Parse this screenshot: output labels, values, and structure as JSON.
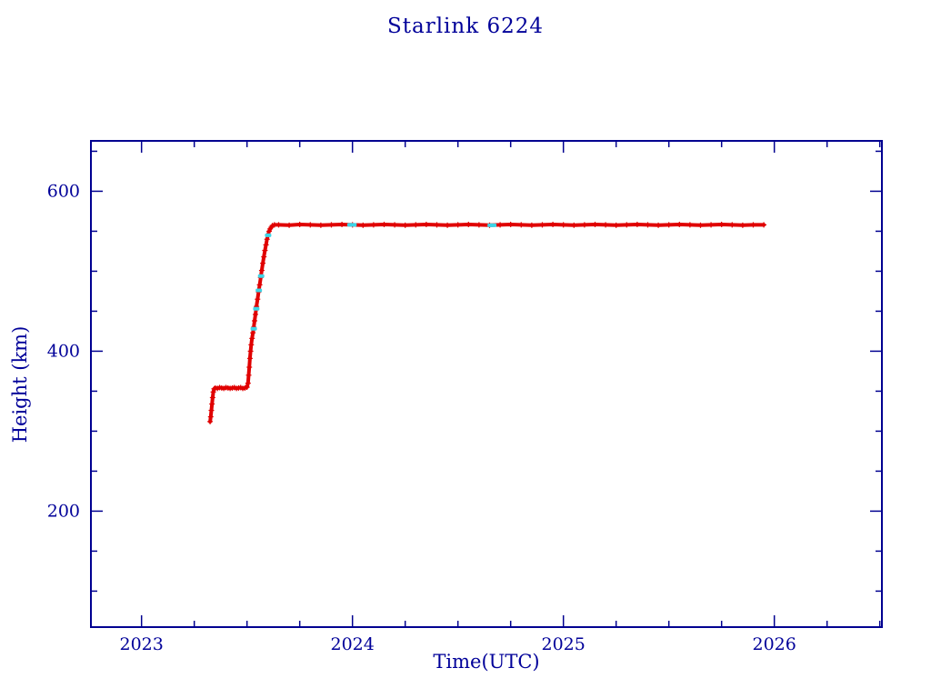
{
  "page": {
    "background": "#ffffff"
  },
  "chart_data": {
    "type": "scatter",
    "title": "Starlink 6224",
    "xlabel": "Time(UTC)",
    "ylabel": "Height (km)",
    "xlim": [
      2022.76,
      2026.51
    ],
    "ylim": [
      55,
      663
    ],
    "x_ticks": [
      2023,
      2024,
      2025,
      2026
    ],
    "x_minor_step": 0.25,
    "y_ticks": [
      200,
      400,
      600
    ],
    "y_minor_step": 50,
    "grid": "off",
    "legend": "none",
    "frame_color": "#000090",
    "text_color": "#000099",
    "series": [
      {
        "name": "height-main-red",
        "color": "#e00000",
        "style": "band",
        "points": [
          [
            2023.325,
            312
          ],
          [
            2023.328,
            318
          ],
          [
            2023.331,
            326
          ],
          [
            2023.334,
            334
          ],
          [
            2023.337,
            342
          ],
          [
            2023.34,
            349
          ],
          [
            2023.344,
            353
          ],
          [
            2023.35,
            354
          ],
          [
            2023.36,
            353.5
          ],
          [
            2023.37,
            354.5
          ],
          [
            2023.38,
            354
          ],
          [
            2023.39,
            353.5
          ],
          [
            2023.4,
            354.5
          ],
          [
            2023.41,
            354
          ],
          [
            2023.42,
            353.5
          ],
          [
            2023.43,
            354
          ],
          [
            2023.44,
            354.5
          ],
          [
            2023.45,
            353.5
          ],
          [
            2023.46,
            354
          ],
          [
            2023.47,
            354.5
          ],
          [
            2023.48,
            353.5
          ],
          [
            2023.49,
            354
          ],
          [
            2023.5,
            355
          ],
          [
            2023.505,
            360
          ],
          [
            2023.508,
            370
          ],
          [
            2023.511,
            380
          ],
          [
            2023.514,
            391
          ],
          [
            2023.517,
            400
          ],
          [
            2023.52,
            408
          ],
          [
            2023.524,
            416
          ],
          [
            2023.528,
            423
          ],
          [
            2023.532,
            430
          ],
          [
            2023.536,
            438
          ],
          [
            2023.54,
            446
          ],
          [
            2023.545,
            456
          ],
          [
            2023.55,
            465
          ],
          [
            2023.555,
            474
          ],
          [
            2023.56,
            483
          ],
          [
            2023.565,
            492
          ],
          [
            2023.57,
            501
          ],
          [
            2023.575,
            510
          ],
          [
            2023.58,
            518
          ],
          [
            2023.585,
            526
          ],
          [
            2023.59,
            533
          ],
          [
            2023.595,
            540
          ],
          [
            2023.6,
            546
          ],
          [
            2023.605,
            550
          ],
          [
            2023.61,
            553
          ],
          [
            2023.615,
            555
          ],
          [
            2023.62,
            557
          ],
          [
            2023.63,
            558
          ],
          [
            2023.65,
            558
          ],
          [
            2023.7,
            557.5
          ],
          [
            2023.75,
            558.5
          ],
          [
            2023.8,
            558
          ],
          [
            2023.85,
            557.5
          ],
          [
            2023.9,
            558
          ],
          [
            2023.95,
            558.5
          ],
          [
            2024,
            558
          ],
          [
            2024.05,
            557.5
          ],
          [
            2024.1,
            558
          ],
          [
            2024.15,
            558.5
          ],
          [
            2024.2,
            558
          ],
          [
            2024.25,
            557.5
          ],
          [
            2024.3,
            558
          ],
          [
            2024.35,
            558.5
          ],
          [
            2024.4,
            558
          ],
          [
            2024.45,
            557.5
          ],
          [
            2024.5,
            558
          ],
          [
            2024.55,
            558.5
          ],
          [
            2024.6,
            558
          ],
          [
            2024.65,
            557.5
          ],
          [
            2024.7,
            558
          ],
          [
            2024.75,
            558.5
          ],
          [
            2024.8,
            558
          ],
          [
            2024.85,
            557.5
          ],
          [
            2024.9,
            558
          ],
          [
            2024.95,
            558.5
          ],
          [
            2025,
            558
          ],
          [
            2025.05,
            557.5
          ],
          [
            2025.1,
            558
          ],
          [
            2025.15,
            558.5
          ],
          [
            2025.2,
            558
          ],
          [
            2025.25,
            557.5
          ],
          [
            2025.3,
            558
          ],
          [
            2025.35,
            558.5
          ],
          [
            2025.4,
            558
          ],
          [
            2025.45,
            557.5
          ],
          [
            2025.5,
            558
          ],
          [
            2025.55,
            558.5
          ],
          [
            2025.6,
            558
          ],
          [
            2025.65,
            557.5
          ],
          [
            2025.7,
            558
          ],
          [
            2025.75,
            558.5
          ],
          [
            2025.8,
            558
          ],
          [
            2025.85,
            557.5
          ],
          [
            2025.9,
            558
          ],
          [
            2025.95,
            558
          ]
        ]
      },
      {
        "name": "height-secondary-cyan",
        "color": "#3fd4e6",
        "style": "dash",
        "points": [
          [
            2023.532,
            428
          ],
          [
            2023.544,
            453
          ],
          [
            2023.556,
            476
          ],
          [
            2023.567,
            494
          ],
          [
            2023.6,
            545
          ],
          [
            2023.99,
            558
          ],
          [
            2024.005,
            558
          ],
          [
            2024.655,
            557.5
          ],
          [
            2024.668,
            557.5
          ]
        ]
      }
    ]
  }
}
